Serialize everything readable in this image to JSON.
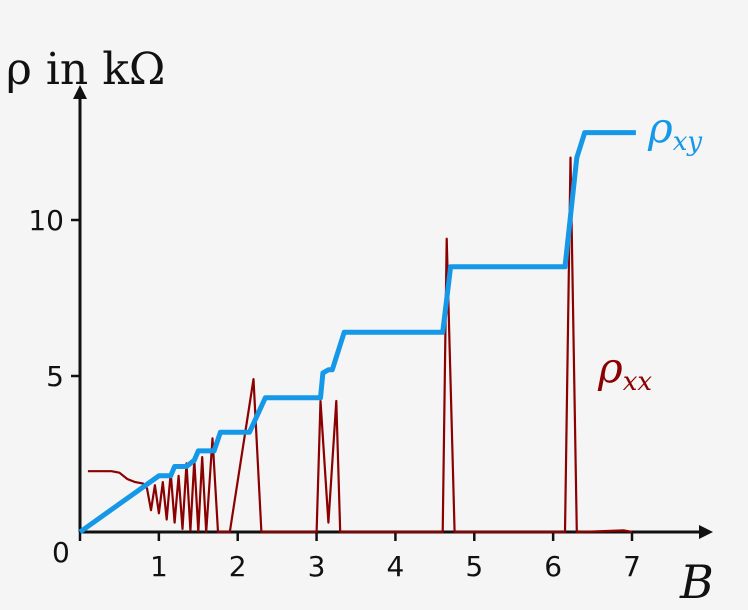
{
  "chart_data": {
    "type": "line",
    "ylabel": "ρ in kΩ",
    "xlabel": "B",
    "xlim": [
      0,
      7.6
    ],
    "ylim": [
      0,
      13.8
    ],
    "xticks": [
      "0",
      "1",
      "2",
      "3",
      "4",
      "5",
      "6",
      "7"
    ],
    "yticks": [
      "5",
      "10"
    ],
    "grid": false,
    "series": [
      {
        "name": "ρxy",
        "label_main": "ρ",
        "label_sub": "xy",
        "color": "#1598e8",
        "x": [
          0,
          1.0,
          1.15,
          1.2,
          1.35,
          1.45,
          1.5,
          1.7,
          1.78,
          2.15,
          2.35,
          3.05,
          3.08,
          3.15,
          3.2,
          3.35,
          4.6,
          4.7,
          6.15,
          6.3,
          6.4,
          7.05
        ],
        "y": [
          0,
          1.8,
          1.8,
          2.1,
          2.1,
          2.3,
          2.6,
          2.6,
          3.2,
          3.2,
          4.3,
          4.3,
          5.1,
          5.2,
          5.2,
          6.4,
          6.4,
          8.5,
          8.5,
          12.0,
          12.8,
          12.8
        ]
      },
      {
        "name": "ρxx",
        "label_main": "ρ",
        "label_sub": "xx",
        "color": "#8b0000",
        "x": [
          0.1,
          0.4,
          0.5,
          0.6,
          0.7,
          0.8,
          0.85,
          0.9,
          0.95,
          1.0,
          1.05,
          1.1,
          1.15,
          1.2,
          1.25,
          1.3,
          1.35,
          1.4,
          1.45,
          1.5,
          1.55,
          1.6,
          1.68,
          1.75,
          1.8,
          1.85,
          1.9,
          2.2,
          2.3,
          2.35,
          2.45,
          3.0,
          3.05,
          3.15,
          3.25,
          3.3,
          3.4,
          3.5,
          4.6,
          4.65,
          4.75,
          6.1,
          6.15,
          6.22,
          6.3,
          6.35,
          6.9,
          7.0
        ],
        "y": [
          1.95,
          1.95,
          1.9,
          1.7,
          1.6,
          1.55,
          1.4,
          0.7,
          1.5,
          0.6,
          1.6,
          0.4,
          1.9,
          0.3,
          1.8,
          0.1,
          2.2,
          0.05,
          2.3,
          0.02,
          2.4,
          0.0,
          3.0,
          0.0,
          0.0,
          0.0,
          0.0,
          4.9,
          0.0,
          0.0,
          0.0,
          0.0,
          4.2,
          0.3,
          4.2,
          0.0,
          0.0,
          0.0,
          0.0,
          9.4,
          0.0,
          0.0,
          0.0,
          12.0,
          0.0,
          0.0,
          0.05,
          0.0
        ]
      }
    ]
  }
}
